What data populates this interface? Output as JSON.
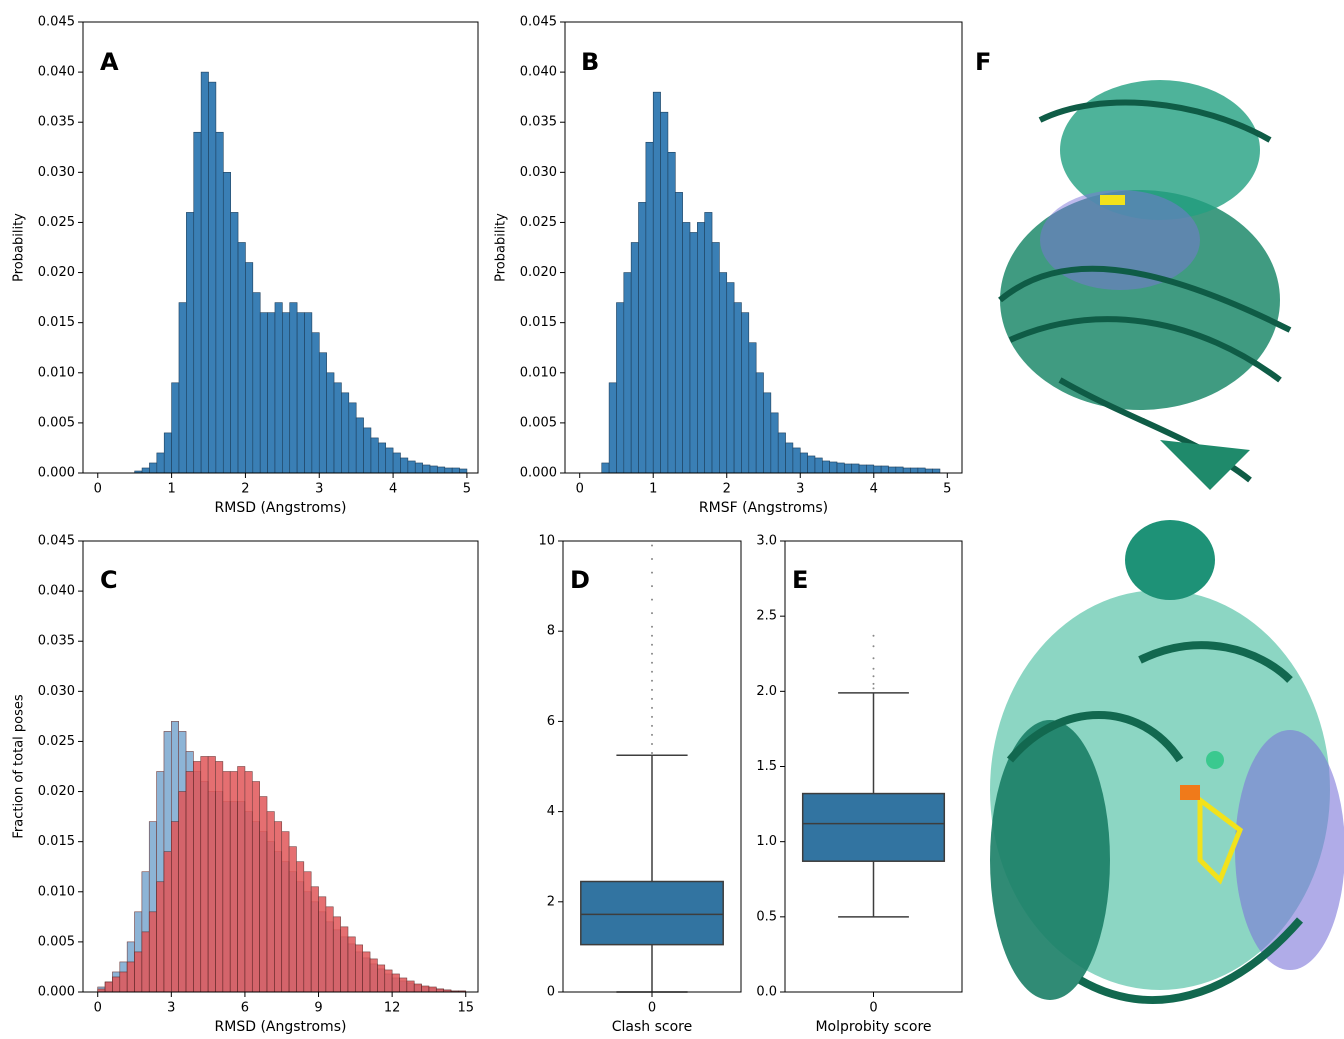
{
  "chart_data": [
    {
      "type": "histogram",
      "panel_label": "A",
      "xlabel": "RMSD (Angstroms)",
      "ylabel": "Probability",
      "color": "#3a7fb5",
      "bins": [
        0.5,
        0.6,
        0.7,
        0.8,
        0.9,
        1.0,
        1.1,
        1.2,
        1.3,
        1.4,
        1.5,
        1.6,
        1.7,
        1.8,
        1.9,
        2.0,
        2.1,
        2.2,
        2.3,
        2.4,
        2.5,
        2.6,
        2.7,
        2.8,
        2.9,
        3.0,
        3.1,
        3.2,
        3.3,
        3.4,
        3.5,
        3.6,
        3.7,
        3.8,
        3.9,
        4.0,
        4.1,
        4.2,
        4.3,
        4.4,
        4.5,
        4.6,
        4.7,
        4.8,
        4.9,
        5.0
      ],
      "values": [
        0.0002,
        0.0005,
        0.001,
        0.002,
        0.004,
        0.009,
        0.017,
        0.026,
        0.034,
        0.04,
        0.039,
        0.034,
        0.03,
        0.026,
        0.023,
        0.021,
        0.018,
        0.016,
        0.016,
        0.017,
        0.016,
        0.017,
        0.016,
        0.016,
        0.014,
        0.012,
        0.01,
        0.009,
        0.008,
        0.007,
        0.0055,
        0.0045,
        0.0035,
        0.003,
        0.0025,
        0.002,
        0.0015,
        0.0012,
        0.001,
        0.0008,
        0.0007,
        0.0006,
        0.0005,
        0.0005,
        0.0004
      ],
      "xlim": [
        -0.2,
        5.15
      ],
      "xticks": [
        0,
        1,
        2,
        3,
        4,
        5
      ],
      "ylim": [
        0,
        0.045
      ],
      "yticks": [
        {
          "value": 0,
          "label": "0.000"
        },
        0.005,
        {
          "value": 0.01,
          "label": "0.010"
        },
        0.015,
        {
          "value": 0.02,
          "label": "0.020"
        },
        0.025,
        {
          "value": 0.03,
          "label": "0.030"
        },
        0.035,
        {
          "value": 0.04,
          "label": "0.040"
        },
        0.045
      ]
    },
    {
      "type": "histogram",
      "panel_label": "B",
      "xlabel": "RMSF (Angstroms)",
      "ylabel": "Probability",
      "color": "#3a7fb5",
      "bins": [
        0.3,
        0.4,
        0.5,
        0.6,
        0.7,
        0.8,
        0.9,
        1.0,
        1.1,
        1.2,
        1.3,
        1.4,
        1.5,
        1.6,
        1.7,
        1.8,
        1.9,
        2.0,
        2.1,
        2.2,
        2.3,
        2.4,
        2.5,
        2.6,
        2.7,
        2.8,
        2.9,
        3.0,
        3.1,
        3.2,
        3.3,
        3.4,
        3.5,
        3.6,
        3.7,
        3.8,
        3.9,
        4.0,
        4.1,
        4.2,
        4.3,
        4.4,
        4.5,
        4.6,
        4.7,
        4.8,
        4.9
      ],
      "values": [
        0.001,
        0.009,
        0.017,
        0.02,
        0.023,
        0.027,
        0.033,
        0.038,
        0.036,
        0.032,
        0.028,
        0.025,
        0.024,
        0.025,
        0.026,
        0.023,
        0.02,
        0.019,
        0.017,
        0.016,
        0.013,
        0.01,
        0.008,
        0.006,
        0.004,
        0.003,
        0.0025,
        0.002,
        0.0017,
        0.0015,
        0.0012,
        0.0011,
        0.001,
        0.0009,
        0.0009,
        0.0008,
        0.0008,
        0.0007,
        0.0007,
        0.0006,
        0.0006,
        0.0005,
        0.0005,
        0.0005,
        0.0004,
        0.0004
      ],
      "xlim": [
        -0.2,
        5.2
      ],
      "xticks": [
        0,
        1,
        2,
        3,
        4,
        5
      ],
      "ylim": [
        0,
        0.045
      ],
      "yticks": [
        {
          "value": 0,
          "label": "0.000"
        },
        0.005,
        {
          "value": 0.01,
          "label": "0.010"
        },
        0.015,
        {
          "value": 0.02,
          "label": "0.020"
        },
        0.025,
        {
          "value": 0.03,
          "label": "0.030"
        },
        0.035,
        {
          "value": 0.04,
          "label": "0.040"
        },
        0.045
      ]
    },
    {
      "type": "histogram",
      "panel_label": "C",
      "xlabel": "RMSD (Angstroms)",
      "ylabel": "Fraction of total poses",
      "bins": [
        0,
        0.3,
        0.6,
        0.9,
        1.2,
        1.5,
        1.8,
        2.1,
        2.4,
        2.7,
        3.0,
        3.3,
        3.6,
        3.9,
        4.2,
        4.5,
        4.8,
        5.1,
        5.4,
        5.7,
        6.0,
        6.3,
        6.6,
        6.9,
        7.2,
        7.5,
        7.8,
        8.1,
        8.4,
        8.7,
        9.0,
        9.3,
        9.6,
        9.9,
        10.2,
        10.5,
        10.8,
        11.1,
        11.4,
        11.7,
        12.0,
        12.3,
        12.6,
        12.9,
        13.2,
        13.5,
        13.8,
        14.1,
        14.4,
        14.7,
        15.0
      ],
      "series": [
        {
          "color": "#7aa8cf",
          "values": [
            0.0005,
            0.001,
            0.002,
            0.003,
            0.005,
            0.008,
            0.012,
            0.017,
            0.022,
            0.026,
            0.027,
            0.026,
            0.024,
            0.022,
            0.021,
            0.02,
            0.02,
            0.019,
            0.019,
            0.019,
            0.018,
            0.017,
            0.016,
            0.015,
            0.014,
            0.013,
            0.012,
            0.011,
            0.01,
            0.009,
            0.008,
            0.007,
            0.0062,
            0.0055,
            0.0048,
            0.004,
            0.0034,
            0.0028,
            0.0023,
            0.0018,
            0.0014,
            0.0011,
            0.0009,
            0.0007,
            0.0005,
            0.0004,
            0.0003,
            0.0002,
            0.0001,
            0.0001
          ]
        },
        {
          "color": "#e15759",
          "values": [
            0.0003,
            0.001,
            0.0015,
            0.002,
            0.003,
            0.004,
            0.006,
            0.008,
            0.011,
            0.014,
            0.017,
            0.02,
            0.022,
            0.023,
            0.0235,
            0.0235,
            0.023,
            0.022,
            0.022,
            0.0225,
            0.022,
            0.021,
            0.0195,
            0.018,
            0.017,
            0.016,
            0.0145,
            0.013,
            0.012,
            0.0105,
            0.0095,
            0.0085,
            0.0075,
            0.0065,
            0.0055,
            0.0047,
            0.004,
            0.0033,
            0.0027,
            0.0022,
            0.0018,
            0.0014,
            0.0011,
            0.0008,
            0.0006,
            0.0005,
            0.0003,
            0.0002,
            0.0001,
            0.0001
          ]
        }
      ],
      "xlim": [
        -0.6,
        15.5
      ],
      "xticks": [
        0,
        3,
        6,
        9,
        12,
        15
      ],
      "ylim": [
        0,
        0.045
      ],
      "yticks": [
        {
          "value": 0,
          "label": "0.000"
        },
        0.005,
        {
          "value": 0.01,
          "label": "0.010"
        },
        0.015,
        {
          "value": 0.02,
          "label": "0.020"
        },
        0.025,
        {
          "value": 0.03,
          "label": "0.030"
        },
        0.035,
        {
          "value": 0.04,
          "label": "0.040"
        },
        0.045
      ]
    },
    {
      "type": "box",
      "panel_label": "D",
      "xlabel": "Clash score",
      "color": "#3274a1",
      "boxes": [
        {
          "label": "0",
          "whislo": 0,
          "q1": 1.05,
          "median": 1.72,
          "q3": 2.45,
          "whishi": 5.25,
          "fliers": [
            5.3,
            5.5,
            5.7,
            5.9,
            6.1,
            6.3,
            6.5,
            6.7,
            6.9,
            7.1,
            7.3,
            7.5,
            7.7,
            7.9,
            8.1,
            8.4,
            8.7,
            9.0,
            9.3,
            9.6,
            9.9
          ]
        }
      ],
      "ylim": [
        0,
        10
      ],
      "yticks": [
        0,
        2,
        4,
        6,
        8,
        10
      ]
    },
    {
      "type": "box",
      "panel_label": "E",
      "xlabel": "Molprobity score",
      "color": "#3274a1",
      "boxes": [
        {
          "label": "0",
          "whislo": 0.5,
          "q1": 0.87,
          "median": 1.12,
          "q3": 1.32,
          "whishi": 1.99,
          "fliers": [
            2.02,
            2.05,
            2.1,
            2.15,
            2.22,
            2.3,
            2.37
          ]
        }
      ],
      "ylim": [
        0,
        3
      ],
      "yticks": [
        {
          "value": 0,
          "label": "0.0"
        },
        0.5,
        {
          "value": 1,
          "label": "1.0"
        },
        1.5,
        {
          "value": 2,
          "label": "2.0"
        },
        2.5,
        {
          "value": 3,
          "label": "3.0"
        }
      ]
    }
  ],
  "image_panel": {
    "label": "F"
  }
}
